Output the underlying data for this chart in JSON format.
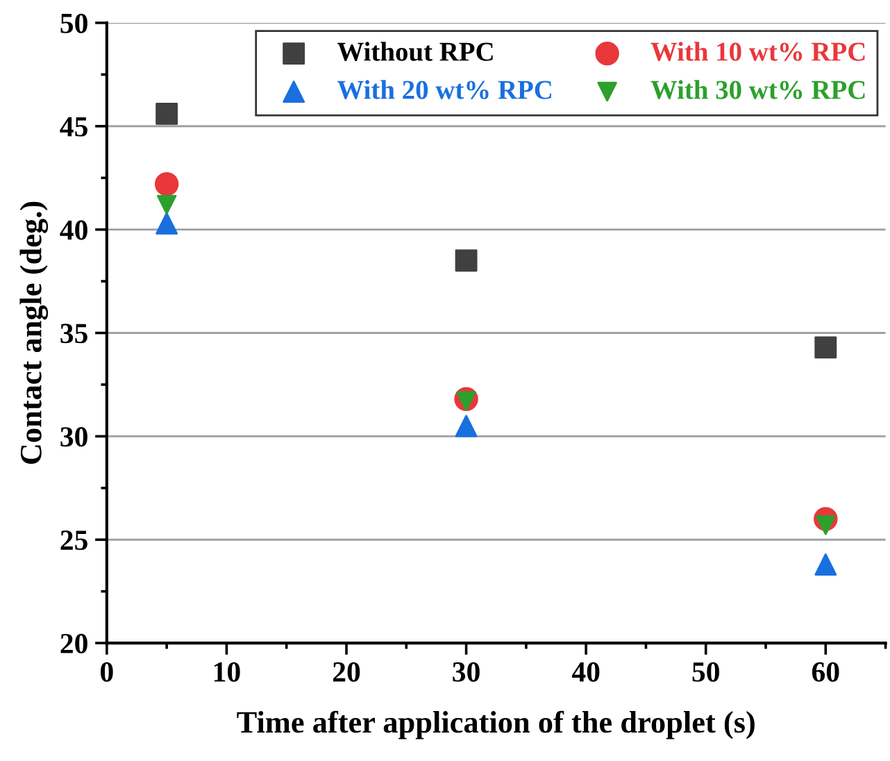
{
  "chart_data": {
    "type": "scatter",
    "xlabel": "Time after application of the droplet (s)",
    "ylabel": "Contact angle (deg.)",
    "x": [
      5,
      30,
      60
    ],
    "series": [
      {
        "name": "Without RPC",
        "color": "#404040",
        "marker": "square",
        "values": [
          45.6,
          38.5,
          34.3
        ]
      },
      {
        "name": "With 10 wt% RPC",
        "color": "#e8383b",
        "marker": "circle",
        "values": [
          42.2,
          31.8,
          26.0
        ]
      },
      {
        "name": "With 20 wt% RPC",
        "color": "#1a6fdf",
        "marker": "triangle",
        "values": [
          40.3,
          30.5,
          23.8
        ]
      },
      {
        "name": "With 30 wt% RPC",
        "color": "#2ca02c",
        "marker": "triangle_down",
        "values": [
          41.2,
          31.7,
          25.7
        ]
      }
    ],
    "xlim": [
      0,
      65
    ],
    "xticks": [
      0,
      10,
      20,
      30,
      40,
      50,
      60
    ],
    "ylim": [
      20,
      50
    ],
    "yticks": [
      20,
      25,
      30,
      35,
      40,
      45,
      50
    ],
    "grid": "y",
    "legend": "top right"
  }
}
